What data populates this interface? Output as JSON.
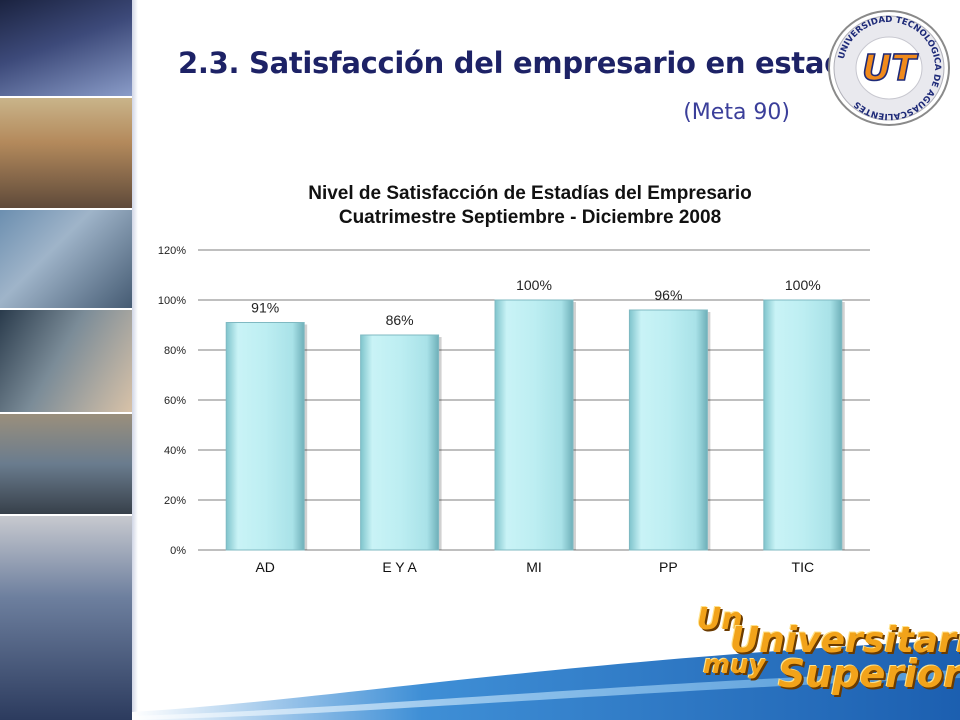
{
  "slide": {
    "title": "2.3. Satisfacción del empresario en estadía",
    "subtitle": "(Meta 90)"
  },
  "logo": {
    "name": "universidad-tecnologica-seal",
    "ring_text": "UNIVERSIDAD TECNOLÓGICA DE AGUASCALIENTES",
    "monogram": "UT",
    "colors": {
      "orange": "#f08a1c",
      "blue": "#1e2a78"
    }
  },
  "slogan": {
    "line1": "Un",
    "line2": "Universitario",
    "line3": "muy",
    "line4": "Superior"
  },
  "chart_data": {
    "type": "bar",
    "title": "Nivel de Satisfacción de Estadías del Empresario",
    "subtitle": "Cuatrimestre Septiembre - Diciembre 2008",
    "categories": [
      "AD",
      "E Y A",
      "MI",
      "PP",
      "TIC"
    ],
    "values": [
      0.91,
      0.86,
      1.0,
      0.96,
      1.0
    ],
    "data_labels": [
      "91%",
      "86%",
      "100%",
      "96%",
      "100%"
    ],
    "ylim": [
      0,
      1.2
    ],
    "yticks": [
      0,
      0.2,
      0.4,
      0.6,
      0.8,
      1.0,
      1.2
    ],
    "ytick_labels": [
      "0%",
      "20%",
      "40%",
      "60%",
      "80%",
      "100%",
      "120%"
    ],
    "grid": true,
    "legend": "none",
    "bar_color": "#bfeef2",
    "bar_edge_color": "#7fb9c2"
  }
}
